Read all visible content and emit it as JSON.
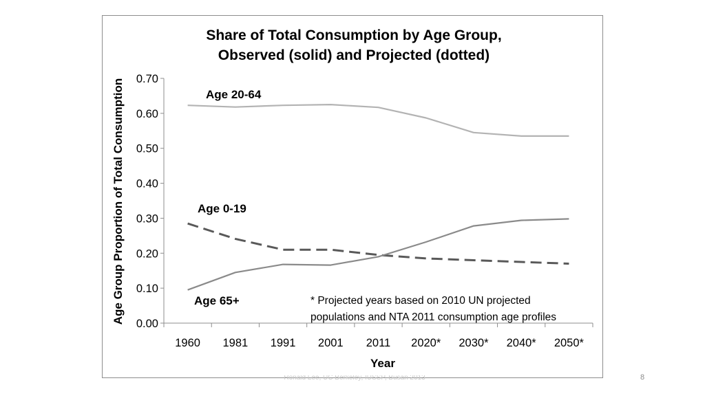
{
  "slide": {
    "footer": "Ronald Lee, UC Berkeley, IUSSP, Busan 2013",
    "page_number": "8"
  },
  "chart_data": {
    "type": "line",
    "title_lines": [
      "Share of Total Consumption by Age Group,",
      "Observed (solid) and Projected (dotted)"
    ],
    "xlabel": "Year",
    "ylabel": "Age Group Proportion of Total Consumption",
    "categories": [
      "1960",
      "1981",
      "1991",
      "2001",
      "2011",
      "2020*",
      "2030*",
      "2040*",
      "2050*"
    ],
    "ylim": [
      0,
      0.7
    ],
    "yticks": [
      "0.00",
      "0.10",
      "0.20",
      "0.30",
      "0.40",
      "0.50",
      "0.60",
      "0.70"
    ],
    "grid": false,
    "series": [
      {
        "name": "Age 20-64",
        "values": [
          0.623,
          0.618,
          0.623,
          0.625,
          0.617,
          0.587,
          0.545,
          0.535,
          0.535
        ],
        "color": "#b3b3b3",
        "dash": "solid"
      },
      {
        "name": "Age 0-19",
        "values": [
          0.285,
          0.241,
          0.21,
          0.21,
          0.195,
          0.185,
          0.18,
          0.175,
          0.17
        ],
        "color": "#595959",
        "dash": "dashed"
      },
      {
        "name": "Age 65+",
        "values": [
          0.095,
          0.145,
          0.168,
          0.166,
          0.19,
          0.232,
          0.278,
          0.294,
          0.298
        ],
        "color": "#8a8a8a",
        "dash": "solid"
      }
    ],
    "annotation_lines": [
      "* Projected years based on 2010 UN projected",
      "populations and NTA 2011 consumption age profiles"
    ]
  }
}
